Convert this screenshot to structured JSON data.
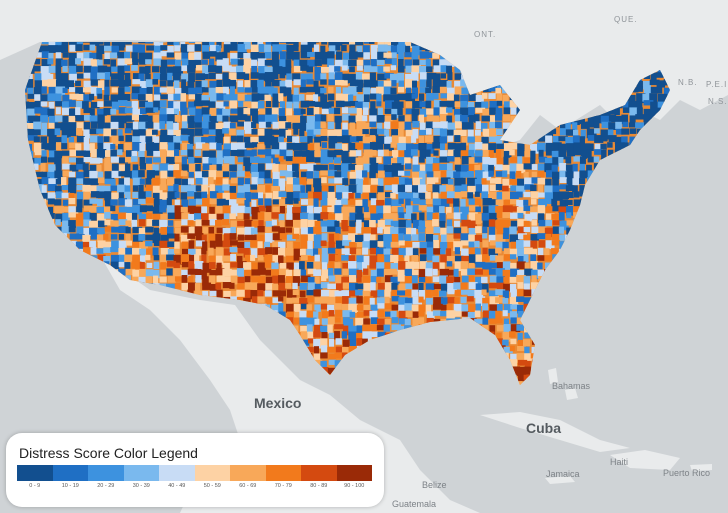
{
  "map": {
    "country_labels": [
      {
        "id": "mexico",
        "text": "Mexico"
      },
      {
        "id": "cuba",
        "text": "Cuba"
      },
      {
        "id": "bahamas",
        "text": "Bahamas"
      },
      {
        "id": "jamaica",
        "text": "Jamaica"
      },
      {
        "id": "haiti",
        "text": "Haiti"
      },
      {
        "id": "puerto-rico",
        "text": "Puerto Rico"
      },
      {
        "id": "belize",
        "text": "Belize"
      },
      {
        "id": "guatemala",
        "text": "Guatemala"
      },
      {
        "id": "ont",
        "text": "ONT."
      },
      {
        "id": "que",
        "text": "QUE."
      },
      {
        "id": "nb",
        "text": "N.B."
      },
      {
        "id": "ns",
        "text": "N.S."
      },
      {
        "id": "pei",
        "text": "P.E.I."
      }
    ]
  },
  "legend": {
    "title": "Distress Score Color Legend",
    "bins": [
      {
        "label": "0 - 9",
        "color": "#124f8f"
      },
      {
        "label": "10 - 19",
        "color": "#1f6fc4"
      },
      {
        "label": "20 - 29",
        "color": "#3d92df"
      },
      {
        "label": "30 - 39",
        "color": "#7ab9ee"
      },
      {
        "label": "40 - 49",
        "color": "#c8dcf5"
      },
      {
        "label": "50 - 59",
        "color": "#fdd2a4"
      },
      {
        "label": "60 - 69",
        "color": "#f8a859"
      },
      {
        "label": "70 - 79",
        "color": "#f27a1c"
      },
      {
        "label": "80 - 89",
        "color": "#d44a10"
      },
      {
        "label": "90 - 100",
        "color": "#9a2a07"
      }
    ]
  },
  "colors": {
    "land": "#eceeef",
    "water": "#cfd3d6",
    "us_base": "#e98a35"
  }
}
